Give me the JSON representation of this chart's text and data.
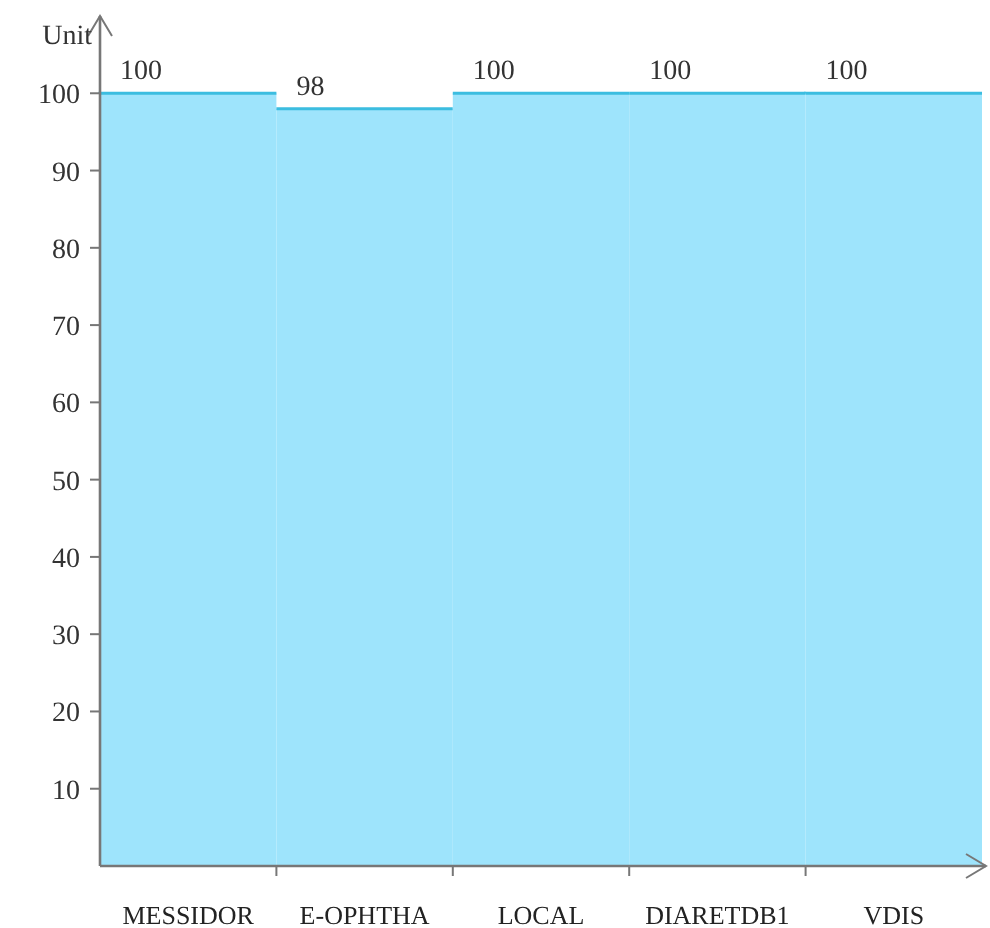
{
  "chart_data": {
    "type": "bar",
    "ylabel": "Unit",
    "categories": [
      "MESSIDOR",
      "E-OPHTHA",
      "LOCAL",
      "DIARETDB1",
      "VDIS"
    ],
    "values": [
      100,
      98,
      100,
      100,
      100
    ],
    "color": "#9ee4fc",
    "ylim": [
      0,
      110
    ],
    "yticks": [
      10,
      20,
      30,
      40,
      50,
      60,
      70,
      80,
      90,
      100
    ],
    "data_labels": true,
    "grid": false
  }
}
